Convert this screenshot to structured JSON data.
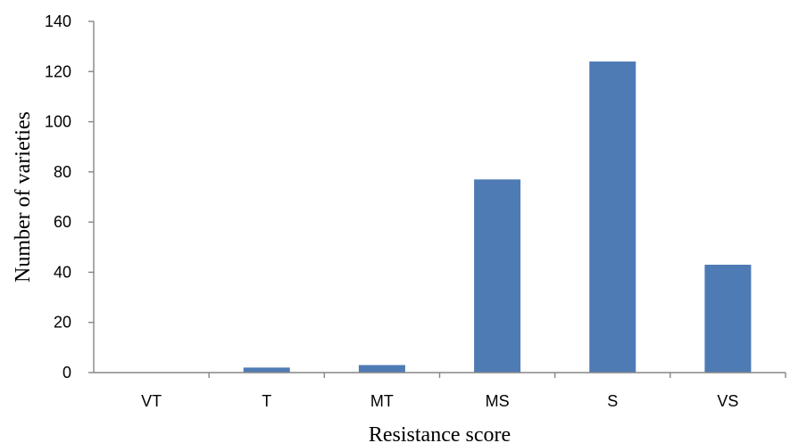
{
  "chart_data": {
    "type": "bar",
    "categories": [
      "VT",
      "T",
      "MT",
      "MS",
      "S",
      "VS"
    ],
    "values": [
      0,
      2,
      3,
      77,
      124,
      43
    ],
    "title": "",
    "xlabel": "Resistance score",
    "ylabel": "Number of varieties",
    "ylim": [
      0,
      140
    ],
    "yticks": [
      "0",
      "20",
      "40",
      "60",
      "80",
      "100",
      "120",
      "140"
    ],
    "grid": false,
    "legend": "none",
    "bar_color": "#4F7BB5",
    "axis_color": "#868686"
  }
}
